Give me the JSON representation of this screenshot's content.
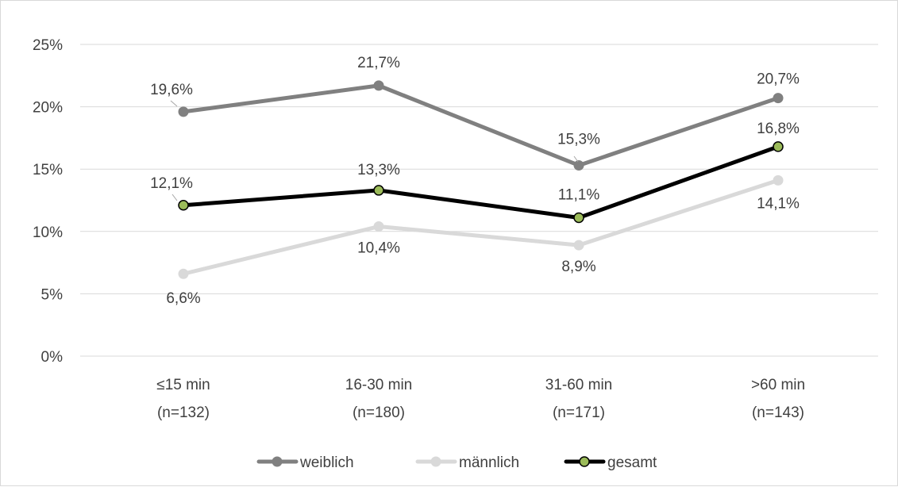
{
  "chart_data": {
    "type": "line",
    "title": "",
    "xlabel": "",
    "ylabel": "",
    "categories": [
      [
        "≤15 min",
        "(n=132)"
      ],
      [
        "16-30 min",
        "(n=180)"
      ],
      [
        "31-60 min",
        "(n=171)"
      ],
      [
        ">60 min",
        "(n=143)"
      ]
    ],
    "ylim": [
      0,
      25
    ],
    "yticks": [
      0,
      5,
      10,
      15,
      20,
      25
    ],
    "ytick_labels": [
      "0%",
      "5%",
      "10%",
      "15%",
      "20%",
      "25%"
    ],
    "grid": true,
    "legend_position": "bottom",
    "series": [
      {
        "name": "weiblich",
        "color": "#808080",
        "marker_fill": "#808080",
        "values": [
          19.6,
          21.7,
          15.3,
          20.7
        ],
        "labels": [
          "19,6%",
          "21,7%",
          "15,3%",
          "20,7%"
        ]
      },
      {
        "name": "männlich",
        "color": "#d9d9d9",
        "marker_fill": "#d9d9d9",
        "values": [
          6.6,
          10.4,
          8.9,
          14.1
        ],
        "labels": [
          "6,6%",
          "10,4%",
          "8,9%",
          "14,1%"
        ]
      },
      {
        "name": "gesamt",
        "color": "#000000",
        "marker_fill": "#9bbb59",
        "values": [
          12.1,
          13.3,
          11.1,
          16.8
        ],
        "labels": [
          "12,1%",
          "13,3%",
          "11,1%",
          "16,8%"
        ]
      }
    ]
  }
}
